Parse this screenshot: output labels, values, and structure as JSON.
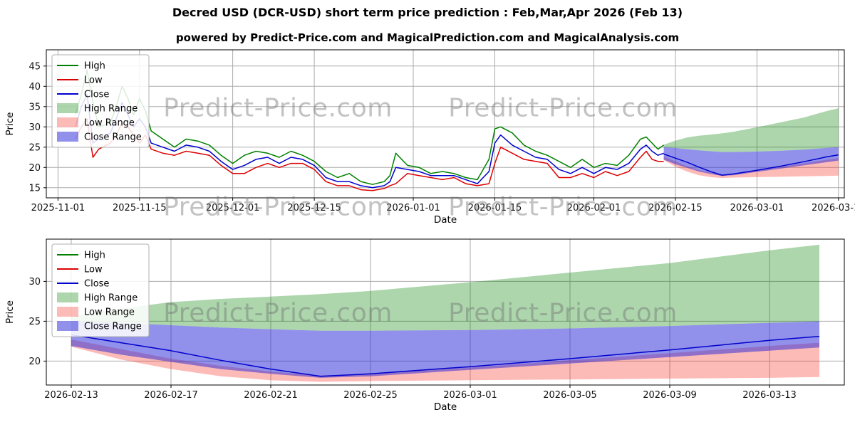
{
  "page": {
    "title": "Decred USD (DCR-USD) short term price prediction : Feb,Mar,Apr 2026 (Feb 13)",
    "subtitle": "powered by Predict-Price.com and MagicalPrediction.com and MagicalAnalysis.com",
    "watermark": "Predict-Price.com"
  },
  "colors": {
    "high_line": "#008000",
    "low_line": "#dd0000",
    "close_line": "#0000cc",
    "high_band": "rgba(0,128,0,0.32)",
    "low_band": "rgba(250,50,40,0.33)",
    "close_band": "rgba(35,35,215,0.5)"
  },
  "chart_data": [
    {
      "type": "line",
      "xlabel": "Date",
      "ylabel": "Price",
      "ylim": [
        12.5,
        49
      ],
      "yticks": [
        15,
        20,
        25,
        30,
        35,
        40,
        45
      ],
      "xlim": [
        "2025-10-30",
        "2026-03-16"
      ],
      "xticks": [
        "2025-11-01",
        "2025-11-15",
        "2025-12-01",
        "2025-12-15",
        "2026-01-01",
        "2026-01-15",
        "2026-02-01",
        "2026-02-15",
        "2026-03-01",
        "2026-03-15"
      ],
      "legend": [
        {
          "label": "High",
          "swatch": "line",
          "color": "#008000"
        },
        {
          "label": "Low",
          "swatch": "line",
          "color": "#dd0000"
        },
        {
          "label": "Close",
          "swatch": "line",
          "color": "#0000cc"
        },
        {
          "label": "High Range",
          "swatch": "patch",
          "color": "rgba(0,128,0,0.32)"
        },
        {
          "label": "Low Range",
          "swatch": "patch",
          "color": "rgba(250,50,40,0.33)"
        },
        {
          "label": "Close Range",
          "swatch": "patch",
          "color": "rgba(35,35,215,0.5)"
        }
      ],
      "bands": [
        {
          "name": "High Range",
          "color": "rgba(0,128,0,0.32)",
          "dates": [
            "2026-02-13",
            "2026-02-15",
            "2026-02-17",
            "2026-02-19",
            "2026-02-21",
            "2026-02-23",
            "2026-02-25",
            "2026-03-01",
            "2026-03-05",
            "2026-03-09",
            "2026-03-13",
            "2026-03-15"
          ],
          "lower": [
            25.0,
            24.8,
            24.5,
            24.2,
            24.0,
            23.8,
            23.8,
            23.9,
            24.1,
            24.4,
            24.8,
            25.0
          ],
          "upper": [
            25.6,
            26.6,
            27.4,
            27.8,
            28.1,
            28.4,
            28.8,
            29.9,
            31.1,
            32.3,
            33.9,
            34.6
          ]
        },
        {
          "name": "Low Range",
          "color": "rgba(250,50,40,0.33)",
          "dates": [
            "2026-02-13",
            "2026-02-15",
            "2026-02-17",
            "2026-02-19",
            "2026-02-21",
            "2026-02-23",
            "2026-02-25",
            "2026-03-01",
            "2026-03-05",
            "2026-03-09",
            "2026-03-13",
            "2026-03-15"
          ],
          "lower": [
            21.8,
            20.2,
            19.0,
            18.1,
            17.6,
            17.4,
            17.5,
            17.6,
            17.7,
            17.8,
            17.9,
            18.0
          ],
          "upper": [
            22.7,
            21.5,
            20.3,
            19.4,
            18.7,
            18.2,
            18.4,
            19.2,
            20.1,
            21.0,
            21.9,
            22.3
          ]
        },
        {
          "name": "Close Range",
          "color": "rgba(35,35,215,0.5)",
          "dates": [
            "2026-02-13",
            "2026-02-15",
            "2026-02-17",
            "2026-02-19",
            "2026-02-21",
            "2026-02-23",
            "2026-02-25",
            "2026-03-01",
            "2026-03-05",
            "2026-03-09",
            "2026-03-13",
            "2026-03-15"
          ],
          "lower": [
            21.9,
            20.8,
            19.9,
            19.0,
            18.4,
            17.9,
            18.1,
            18.9,
            19.7,
            20.5,
            21.3,
            21.7
          ],
          "upper": [
            25.0,
            24.8,
            24.5,
            24.2,
            24.0,
            23.8,
            23.8,
            23.9,
            24.1,
            24.4,
            24.8,
            25.0
          ]
        }
      ],
      "lines": [
        {
          "name": "High",
          "color": "#008000",
          "dates": [
            "2025-11-04",
            "2025-11-05",
            "2025-11-06",
            "2025-11-07",
            "2025-11-08",
            "2025-11-10",
            "2025-11-11",
            "2025-11-12",
            "2025-11-13",
            "2025-11-14",
            "2025-11-15",
            "2025-11-16",
            "2025-11-17",
            "2025-11-19",
            "2025-11-21",
            "2025-11-23",
            "2025-11-25",
            "2025-11-27",
            "2025-11-29",
            "2025-12-01",
            "2025-12-03",
            "2025-12-05",
            "2025-12-07",
            "2025-12-09",
            "2025-12-11",
            "2025-12-13",
            "2025-12-15",
            "2025-12-17",
            "2025-12-19",
            "2025-12-21",
            "2025-12-23",
            "2025-12-25",
            "2025-12-27",
            "2025-12-28",
            "2025-12-29",
            "2025-12-31",
            "2026-01-02",
            "2026-01-04",
            "2026-01-06",
            "2026-01-08",
            "2026-01-10",
            "2026-01-12",
            "2026-01-14",
            "2026-01-15",
            "2026-01-16",
            "2026-01-18",
            "2026-01-20",
            "2026-01-22",
            "2026-01-24",
            "2026-01-26",
            "2026-01-28",
            "2026-01-30",
            "2026-02-01",
            "2026-02-03",
            "2026-02-05",
            "2026-02-07",
            "2026-02-09",
            "2026-02-10",
            "2026-02-11",
            "2026-02-12",
            "2026-02-13"
          ],
          "values": [
            33,
            38,
            44,
            36,
            30,
            31,
            35,
            40,
            37,
            33,
            37,
            34,
            29,
            27,
            25,
            27,
            26.5,
            25.5,
            23,
            21,
            23,
            24,
            23.5,
            22.5,
            24,
            23,
            21.5,
            19,
            17.5,
            18.5,
            16.5,
            15.8,
            16.5,
            18,
            23.5,
            20.5,
            20,
            18.5,
            19,
            18.5,
            17.5,
            17,
            22,
            29.5,
            30,
            28.5,
            25.5,
            24,
            23,
            21.5,
            20,
            22,
            20,
            21,
            20.5,
            23,
            27,
            27.5,
            26,
            24.5,
            25.5
          ]
        },
        {
          "name": "Low",
          "color": "#dd0000",
          "dates": [
            "2025-11-04",
            "2025-11-05",
            "2025-11-06",
            "2025-11-07",
            "2025-11-08",
            "2025-11-10",
            "2025-11-11",
            "2025-11-12",
            "2025-11-13",
            "2025-11-14",
            "2025-11-15",
            "2025-11-16",
            "2025-11-17",
            "2025-11-19",
            "2025-11-21",
            "2025-11-23",
            "2025-11-25",
            "2025-11-27",
            "2025-11-29",
            "2025-12-01",
            "2025-12-03",
            "2025-12-05",
            "2025-12-07",
            "2025-12-09",
            "2025-12-11",
            "2025-12-13",
            "2025-12-15",
            "2025-12-17",
            "2025-12-19",
            "2025-12-21",
            "2025-12-23",
            "2025-12-25",
            "2025-12-27",
            "2025-12-28",
            "2025-12-29",
            "2025-12-31",
            "2026-01-02",
            "2026-01-04",
            "2026-01-06",
            "2026-01-08",
            "2026-01-10",
            "2026-01-12",
            "2026-01-14",
            "2026-01-15",
            "2026-01-16",
            "2026-01-18",
            "2026-01-20",
            "2026-01-22",
            "2026-01-24",
            "2026-01-26",
            "2026-01-28",
            "2026-01-30",
            "2026-02-01",
            "2026-02-03",
            "2026-02-05",
            "2026-02-07",
            "2026-02-09",
            "2026-02-10",
            "2026-02-11",
            "2026-02-12",
            "2026-02-13"
          ],
          "values": [
            27,
            30,
            32,
            22.5,
            24.5,
            26,
            28,
            31,
            30,
            28,
            26,
            28,
            24.5,
            23.5,
            23,
            24,
            23.5,
            23,
            20.5,
            18.5,
            18.5,
            20,
            21,
            20,
            21,
            21,
            19.5,
            16.5,
            15.5,
            15.5,
            14.5,
            14.3,
            14.8,
            15.5,
            16,
            18.5,
            18,
            17.5,
            17,
            17.5,
            16,
            15.5,
            16,
            21,
            25,
            23.5,
            22,
            21.5,
            21,
            17.5,
            17.5,
            18.5,
            17.5,
            19,
            18,
            19,
            22.5,
            24,
            22,
            21.5,
            21.5
          ]
        },
        {
          "name": "Close",
          "color": "#0000cc",
          "dates": [
            "2025-11-04",
            "2025-11-05",
            "2025-11-06",
            "2025-11-07",
            "2025-11-08",
            "2025-11-10",
            "2025-11-11",
            "2025-11-12",
            "2025-11-13",
            "2025-11-14",
            "2025-11-15",
            "2025-11-16",
            "2025-11-17",
            "2025-11-19",
            "2025-11-21",
            "2025-11-23",
            "2025-11-25",
            "2025-11-27",
            "2025-11-29",
            "2025-12-01",
            "2025-12-03",
            "2025-12-05",
            "2025-12-07",
            "2025-12-09",
            "2025-12-11",
            "2025-12-13",
            "2025-12-15",
            "2025-12-17",
            "2025-12-19",
            "2025-12-21",
            "2025-12-23",
            "2025-12-25",
            "2025-12-27",
            "2025-12-28",
            "2025-12-29",
            "2025-12-31",
            "2026-01-02",
            "2026-01-04",
            "2026-01-06",
            "2026-01-08",
            "2026-01-10",
            "2026-01-12",
            "2026-01-14",
            "2026-01-15",
            "2026-01-16",
            "2026-01-18",
            "2026-01-20",
            "2026-01-22",
            "2026-01-24",
            "2026-01-26",
            "2026-01-28",
            "2026-01-30",
            "2026-02-01",
            "2026-02-03",
            "2026-02-05",
            "2026-02-07",
            "2026-02-09",
            "2026-02-10",
            "2026-02-11",
            "2026-02-12",
            "2026-02-13"
          ],
          "values": [
            30,
            35,
            38,
            26,
            27,
            28.5,
            32,
            36,
            33,
            30,
            32,
            30,
            26,
            25,
            24,
            25.5,
            25,
            24,
            21.5,
            19.5,
            20.5,
            22,
            22.5,
            21,
            22.5,
            22,
            20.5,
            17.5,
            16.5,
            16.5,
            15.5,
            15,
            15.5,
            16.5,
            20,
            19.5,
            19,
            18,
            18,
            18,
            17,
            16,
            19,
            26,
            28,
            25.5,
            24,
            22.5,
            22,
            19.5,
            18.5,
            20,
            18.5,
            20,
            19.5,
            21,
            24.5,
            25.5,
            24,
            23,
            23.5
          ]
        },
        {
          "name": "Close prediction",
          "color": "#0000cc",
          "dates": [
            "2026-02-13",
            "2026-02-15",
            "2026-02-17",
            "2026-02-19",
            "2026-02-21",
            "2026-02-23",
            "2026-02-25",
            "2026-03-01",
            "2026-03-05",
            "2026-03-09",
            "2026-03-13",
            "2026-03-15"
          ],
          "values": [
            23.3,
            22.3,
            21.3,
            20.1,
            19.0,
            18.1,
            18.4,
            19.3,
            20.3,
            21.4,
            22.6,
            23.1
          ]
        }
      ]
    },
    {
      "type": "line",
      "xlabel": "Date",
      "ylabel": "Price",
      "ylim": [
        17,
        35.3
      ],
      "yticks": [
        20,
        25,
        30
      ],
      "xlim": [
        "2026-02-12",
        "2026-03-16"
      ],
      "xticks": [
        "2026-02-13",
        "2026-02-17",
        "2026-02-21",
        "2026-02-25",
        "2026-03-01",
        "2026-03-05",
        "2026-03-09",
        "2026-03-13"
      ],
      "legend": [
        {
          "label": "High",
          "swatch": "line",
          "color": "#008000"
        },
        {
          "label": "Low",
          "swatch": "line",
          "color": "#dd0000"
        },
        {
          "label": "Close",
          "swatch": "line",
          "color": "#0000cc"
        },
        {
          "label": "High Range",
          "swatch": "patch",
          "color": "rgba(0,128,0,0.32)"
        },
        {
          "label": "Low Range",
          "swatch": "patch",
          "color": "rgba(250,50,40,0.33)"
        },
        {
          "label": "Close Range",
          "swatch": "patch",
          "color": "rgba(35,35,215,0.5)"
        }
      ],
      "bands": [
        {
          "name": "High Range",
          "color": "rgba(0,128,0,0.32)",
          "dates": [
            "2026-02-13",
            "2026-02-15",
            "2026-02-17",
            "2026-02-19",
            "2026-02-21",
            "2026-02-23",
            "2026-02-25",
            "2026-03-01",
            "2026-03-05",
            "2026-03-09",
            "2026-03-13",
            "2026-03-15"
          ],
          "lower": [
            25.0,
            24.8,
            24.5,
            24.2,
            24.0,
            23.8,
            23.8,
            23.9,
            24.1,
            24.4,
            24.8,
            25.0
          ],
          "upper": [
            25.6,
            26.6,
            27.4,
            27.8,
            28.1,
            28.4,
            28.8,
            29.9,
            31.1,
            32.3,
            33.9,
            34.6
          ]
        },
        {
          "name": "Low Range",
          "color": "rgba(250,50,40,0.33)",
          "dates": [
            "2026-02-13",
            "2026-02-15",
            "2026-02-17",
            "2026-02-19",
            "2026-02-21",
            "2026-02-23",
            "2026-02-25",
            "2026-03-01",
            "2026-03-05",
            "2026-03-09",
            "2026-03-13",
            "2026-03-15"
          ],
          "lower": [
            21.8,
            20.2,
            19.0,
            18.1,
            17.6,
            17.4,
            17.5,
            17.6,
            17.7,
            17.8,
            17.9,
            18.0
          ],
          "upper": [
            22.7,
            21.5,
            20.3,
            19.4,
            18.7,
            18.2,
            18.4,
            19.2,
            20.1,
            21.0,
            21.9,
            22.3
          ]
        },
        {
          "name": "Close Range",
          "color": "rgba(35,35,215,0.5)",
          "dates": [
            "2026-02-13",
            "2026-02-15",
            "2026-02-17",
            "2026-02-19",
            "2026-02-21",
            "2026-02-23",
            "2026-02-25",
            "2026-03-01",
            "2026-03-05",
            "2026-03-09",
            "2026-03-13",
            "2026-03-15"
          ],
          "lower": [
            21.9,
            20.8,
            19.9,
            19.0,
            18.4,
            17.9,
            18.1,
            18.9,
            19.7,
            20.5,
            21.3,
            21.7
          ],
          "upper": [
            25.0,
            24.8,
            24.5,
            24.2,
            24.0,
            23.8,
            23.8,
            23.9,
            24.1,
            24.4,
            24.8,
            25.0
          ]
        }
      ],
      "lines": [
        {
          "name": "Close prediction",
          "color": "#0000cc",
          "dates": [
            "2026-02-13",
            "2026-02-15",
            "2026-02-17",
            "2026-02-19",
            "2026-02-21",
            "2026-02-23",
            "2026-02-25",
            "2026-03-01",
            "2026-03-05",
            "2026-03-09",
            "2026-03-13",
            "2026-03-15"
          ],
          "values": [
            23.3,
            22.3,
            21.3,
            20.1,
            19.0,
            18.1,
            18.4,
            19.3,
            20.3,
            21.4,
            22.6,
            23.1
          ]
        }
      ]
    }
  ]
}
